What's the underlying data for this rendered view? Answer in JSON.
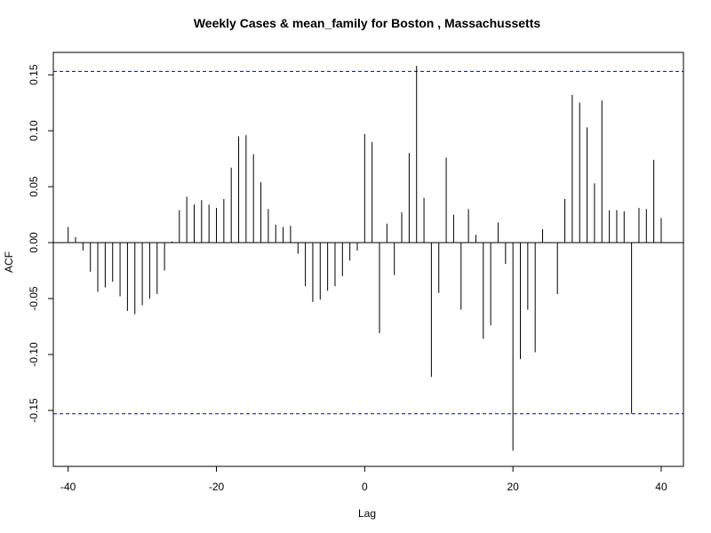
{
  "chart_data": {
    "type": "bar",
    "title": "Weekly Cases & mean_family for Boston , Massachussetts",
    "xlabel": "Lag",
    "ylabel": "ACF",
    "xlim": [
      -42,
      43
    ],
    "ylim": [
      -0.2,
      0.17
    ],
    "x_ticks": [
      -40,
      -20,
      0,
      20,
      40
    ],
    "x_tick_labels": [
      "-40",
      "-20",
      "0",
      "20",
      "40"
    ],
    "y_ticks": [
      -0.15,
      -0.1,
      -0.05,
      0.0,
      0.05,
      0.1,
      0.15
    ],
    "y_tick_labels": [
      "-0.15",
      "-0.10",
      "-0.05",
      "0.00",
      "0.05",
      "0.10",
      "0.15"
    ],
    "confidence_level": 0.153,
    "confidence_color": "#0000cc",
    "bar_color": "#000000",
    "x": [
      -40,
      -39,
      -38,
      -37,
      -36,
      -35,
      -34,
      -33,
      -32,
      -31,
      -30,
      -29,
      -28,
      -27,
      -26,
      -25,
      -24,
      -23,
      -22,
      -21,
      -20,
      -19,
      -18,
      -17,
      -16,
      -15,
      -14,
      -13,
      -12,
      -11,
      -10,
      -9,
      -8,
      -7,
      -6,
      -5,
      -4,
      -3,
      -2,
      -1,
      0,
      1,
      2,
      3,
      4,
      5,
      6,
      7,
      8,
      9,
      10,
      11,
      12,
      13,
      14,
      15,
      16,
      17,
      18,
      19,
      20,
      21,
      22,
      23,
      24,
      25,
      26,
      27,
      28,
      29,
      30,
      31,
      32,
      33,
      34,
      35,
      36,
      37,
      38,
      39,
      40
    ],
    "values": [
      0.014,
      0.005,
      -0.007,
      -0.026,
      -0.044,
      -0.04,
      -0.035,
      -0.048,
      -0.061,
      -0.064,
      -0.056,
      -0.05,
      -0.046,
      -0.025,
      0.001,
      0.029,
      0.041,
      0.034,
      0.038,
      0.034,
      0.031,
      0.039,
      0.067,
      0.095,
      0.096,
      0.079,
      0.054,
      0.03,
      0.016,
      0.014,
      0.015,
      -0.01,
      -0.039,
      -0.053,
      -0.051,
      -0.043,
      -0.039,
      -0.03,
      -0.016,
      -0.007,
      0.097,
      0.09,
      -0.081,
      0.017,
      -0.029,
      0.027,
      0.08,
      0.158,
      0.04,
      -0.12,
      -0.045,
      0.076,
      0.025,
      -0.06,
      0.03,
      0.007,
      -0.086,
      -0.074,
      0.018,
      -0.019,
      -0.186,
      -0.104,
      -0.06,
      -0.098,
      0.012,
      0.0,
      -0.046,
      0.039,
      0.132,
      0.125,
      0.103,
      0.053,
      0.127,
      0.029,
      0.029,
      0.028,
      -0.153,
      0.031,
      0.03,
      0.074,
      0.022
    ]
  }
}
